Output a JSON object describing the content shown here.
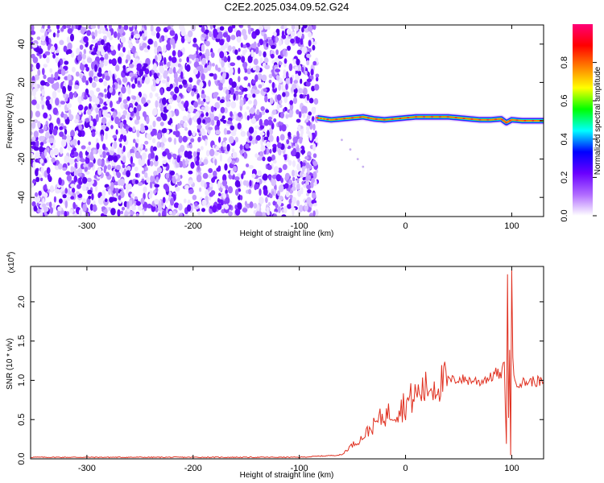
{
  "figure": {
    "title": "C2E2.2025.034.09.52.G24"
  },
  "chart_data": [
    {
      "type": "heatmap",
      "xlabel": "Height of straight line (km)",
      "ylabel": "Frequency (Hz)",
      "xlim": [
        -353,
        130
      ],
      "ylim": [
        -50,
        50
      ],
      "xticks": [
        "-300",
        "-200",
        "-100",
        "0",
        "100"
      ],
      "yticks": [
        "-40",
        "-20",
        "0",
        "20",
        "40"
      ],
      "colorbar": {
        "label": "Normalized spectral amplitude",
        "range": [
          0,
          1
        ],
        "ticks": [
          "0.0",
          "0.2",
          "0.4",
          "0.6",
          "0.8"
        ],
        "colors": [
          "#ffffff",
          "#b06aff",
          "#6a00ff",
          "#0000ff",
          "#00ffff",
          "#00ff00",
          "#ffff00",
          "#ff7f00",
          "#ff0000",
          "#ff0077"
        ]
      },
      "noise_region_x": [
        -353,
        -83
      ],
      "signal_region_x": [
        -83,
        130
      ],
      "ridge": {
        "x": [
          -83,
          -70,
          -60,
          -50,
          -40,
          -30,
          -20,
          -10,
          0,
          10,
          20,
          30,
          40,
          50,
          60,
          70,
          80,
          90,
          95,
          100,
          110,
          120,
          130
        ],
        "frequency": [
          1.5,
          0.5,
          1,
          1.5,
          2,
          1,
          0.5,
          1,
          1.5,
          2,
          2,
          2,
          2,
          1.5,
          1,
          0.5,
          0.5,
          1,
          -1,
          0.5,
          0,
          0,
          0
        ]
      },
      "faint_trace": {
        "x": [
          -60,
          -52,
          -45,
          -40
        ],
        "frequency": [
          -10,
          -15,
          -20,
          -24
        ]
      }
    },
    {
      "type": "line",
      "xlabel": "Height of straight line (km)",
      "ylabel": "SNR (10 * v/v)",
      "y_multiplier": "(x10",
      "y_multiplier_exp": "4",
      "y_multiplier_close": ")",
      "xlim": [
        -353,
        130
      ],
      "ylim": [
        0,
        2.45
      ],
      "xticks": [
        "-300",
        "-200",
        "-100",
        "0",
        "100"
      ],
      "yticks": [
        "0.0",
        "0.5",
        "1.0",
        "1.5",
        "2.0"
      ],
      "color": "#e03020",
      "series": [
        {
          "x": [
            -353,
            -300,
            -200,
            -100,
            -60,
            -55,
            -50,
            -45,
            -40,
            -35,
            -30,
            -25,
            -20,
            -15,
            -10,
            -5,
            0,
            5,
            10,
            15,
            20,
            25,
            30,
            35,
            40,
            45,
            50,
            55,
            60,
            65,
            70,
            75,
            80,
            85,
            90,
            93,
            95,
            96,
            97,
            98,
            99,
            100,
            101,
            102,
            105,
            110,
            120,
            130
          ],
          "y": [
            0.02,
            0.02,
            0.02,
            0.02,
            0.05,
            0.12,
            0.18,
            0.22,
            0.28,
            0.36,
            0.42,
            0.5,
            0.55,
            0.58,
            0.62,
            0.65,
            0.7,
            0.76,
            0.82,
            0.86,
            0.9,
            0.93,
            0.95,
            0.98,
            1.0,
            1.0,
            1.02,
            1.01,
            1.0,
            1.0,
            0.98,
            1.02,
            1.03,
            1.1,
            1.05,
            1.22,
            0.2,
            2.3,
            0.5,
            1.4,
            0.05,
            2.45,
            1.3,
            1.0,
            0.98,
            0.97,
            0.99,
            0.98
          ]
        }
      ]
    }
  ]
}
